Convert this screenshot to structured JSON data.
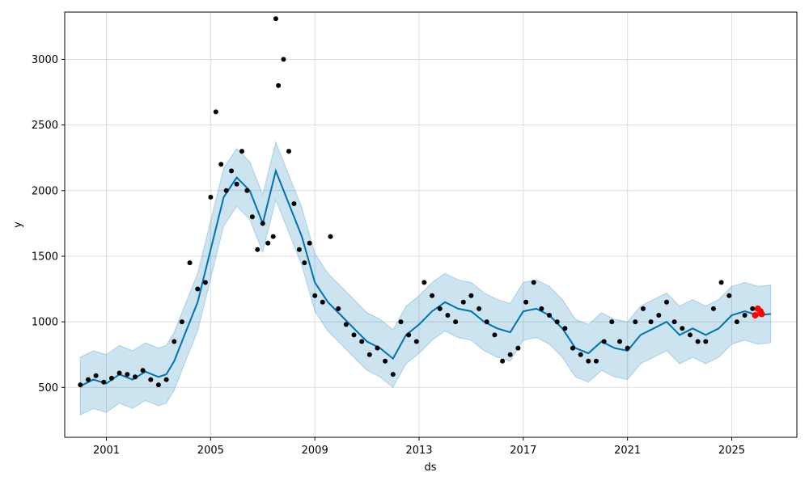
{
  "chart_data": {
    "type": "line",
    "title": "",
    "xlabel": "ds",
    "ylabel": "y",
    "xlim": [
      1999.4,
      2027.5
    ],
    "ylim": [
      120,
      3360
    ],
    "grid": true,
    "x_ticks": [
      {
        "value": 2001,
        "label": "2001"
      },
      {
        "value": 2005,
        "label": "2005"
      },
      {
        "value": 2009,
        "label": "2009"
      },
      {
        "value": 2013,
        "label": "2013"
      },
      {
        "value": 2017,
        "label": "2017"
      },
      {
        "value": 2021,
        "label": "2021"
      },
      {
        "value": 2025,
        "label": "2025"
      }
    ],
    "y_ticks": [
      {
        "value": 500,
        "label": "500"
      },
      {
        "value": 1000,
        "label": "1000"
      },
      {
        "value": 1500,
        "label": "1500"
      },
      {
        "value": 2000,
        "label": "2000"
      },
      {
        "value": 2500,
        "label": "2500"
      },
      {
        "value": 3000,
        "label": "3000"
      }
    ],
    "colors": {
      "forecast_line": "#0072B2",
      "uncertainty_band": "#0072B2",
      "actual_points": "#000000",
      "future_points": "#ff0000",
      "grid": "#dddddd"
    },
    "forecast": {
      "x": [
        2000.0,
        2000.5,
        2001.0,
        2001.5,
        2002.0,
        2002.5,
        2003.0,
        2003.3,
        2003.6,
        2004.0,
        2004.5,
        2005.0,
        2005.5,
        2006.0,
        2006.5,
        2007.0,
        2007.5,
        2008.0,
        2008.5,
        2009.0,
        2009.5,
        2010.0,
        2010.5,
        2011.0,
        2011.5,
        2012.0,
        2012.5,
        2013.0,
        2013.5,
        2014.0,
        2014.5,
        2015.0,
        2015.5,
        2016.0,
        2016.5,
        2017.0,
        2017.5,
        2018.0,
        2018.5,
        2019.0,
        2019.5,
        2020.0,
        2020.5,
        2021.0,
        2021.5,
        2022.0,
        2022.5,
        2023.0,
        2023.5,
        2024.0,
        2024.5,
        2025.0,
        2025.5,
        2026.0,
        2026.5
      ],
      "yhat": [
        510,
        560,
        530,
        600,
        560,
        620,
        580,
        600,
        700,
        900,
        1150,
        1550,
        1950,
        2100,
        2000,
        1750,
        2150,
        1900,
        1650,
        1300,
        1150,
        1050,
        950,
        850,
        800,
        720,
        900,
        980,
        1080,
        1150,
        1100,
        1080,
        1000,
        950,
        920,
        1080,
        1100,
        1050,
        950,
        800,
        760,
        850,
        800,
        780,
        900,
        950,
        1000,
        900,
        950,
        900,
        950,
        1050,
        1080,
        1050,
        1060
      ],
      "lower": [
        290,
        340,
        310,
        380,
        340,
        400,
        360,
        380,
        480,
        680,
        930,
        1330,
        1730,
        1880,
        1780,
        1530,
        1930,
        1680,
        1430,
        1080,
        930,
        830,
        730,
        630,
        580,
        500,
        680,
        760,
        860,
        930,
        880,
        860,
        780,
        730,
        700,
        860,
        880,
        830,
        730,
        580,
        540,
        630,
        580,
        560,
        680,
        730,
        780,
        680,
        730,
        680,
        730,
        830,
        860,
        830,
        840
      ],
      "upper": [
        730,
        780,
        750,
        820,
        780,
        840,
        800,
        820,
        920,
        1120,
        1370,
        1770,
        2170,
        2320,
        2220,
        1970,
        2370,
        2120,
        1870,
        1520,
        1370,
        1270,
        1170,
        1070,
        1020,
        940,
        1120,
        1200,
        1300,
        1370,
        1320,
        1300,
        1220,
        1170,
        1140,
        1300,
        1320,
        1270,
        1170,
        1020,
        980,
        1070,
        1020,
        1000,
        1120,
        1170,
        1220,
        1120,
        1170,
        1120,
        1170,
        1270,
        1300,
        1270,
        1280
      ]
    },
    "actual": {
      "x": [
        2000.0,
        2000.3,
        2000.6,
        2000.9,
        2001.2,
        2001.5,
        2001.8,
        2002.1,
        2002.4,
        2002.7,
        2003.0,
        2003.3,
        2003.6,
        2003.9,
        2004.2,
        2004.5,
        2004.8,
        2005.0,
        2005.2,
        2005.4,
        2005.6,
        2005.8,
        2006.0,
        2006.2,
        2006.4,
        2006.6,
        2006.8,
        2007.0,
        2007.2,
        2007.4,
        2007.6,
        2007.8,
        2008.0,
        2008.2,
        2008.4,
        2008.6,
        2008.8,
        2009.0,
        2009.3,
        2009.6,
        2009.9,
        2010.2,
        2010.5,
        2010.8,
        2011.1,
        2011.4,
        2011.7,
        2012.0,
        2012.3,
        2012.6,
        2012.9,
        2013.2,
        2013.5,
        2013.8,
        2014.1,
        2014.4,
        2014.7,
        2015.0,
        2015.3,
        2015.6,
        2015.9,
        2016.2,
        2016.5,
        2016.8,
        2017.1,
        2017.4,
        2017.7,
        2018.0,
        2018.3,
        2018.6,
        2018.9,
        2019.2,
        2019.5,
        2019.8,
        2020.1,
        2020.4,
        2020.7,
        2021.0,
        2021.3,
        2021.6,
        2021.9,
        2022.2,
        2022.5,
        2022.8,
        2023.1,
        2023.4,
        2023.7,
        2024.0,
        2024.3,
        2024.6,
        2024.9,
        2025.2,
        2025.5,
        2025.8
      ],
      "y": [
        520,
        560,
        590,
        540,
        570,
        610,
        600,
        580,
        630,
        560,
        520,
        560,
        850,
        1000,
        1450,
        1250,
        1300,
        1950,
        2600,
        2200,
        2000,
        2150,
        2050,
        2300,
        2000,
        1800,
        1550,
        1750,
        1600,
        1650,
        2800,
        3000,
        2300,
        1900,
        1550,
        1450,
        1600,
        1200,
        1150,
        1650,
        1100,
        980,
        900,
        850,
        750,
        800,
        700,
        600,
        1000,
        900,
        850,
        1300,
        1200,
        1100,
        1050,
        1000,
        1150,
        1200,
        1100,
        1000,
        900,
        700,
        750,
        800,
        1150,
        1300,
        1100,
        1050,
        1000,
        950,
        800,
        750,
        700,
        700,
        850,
        1000,
        850,
        800,
        1000,
        1100,
        1000,
        1050,
        1150,
        1000,
        950,
        900,
        850,
        850,
        1100,
        1300,
        1200,
        1000,
        1050,
        1100
      ],
      "outlier": {
        "x": 2007.5,
        "y": 3310
      }
    },
    "future": {
      "x": [
        2025.9,
        2026.0,
        2026.1,
        2026.15
      ],
      "y": [
        1050,
        1100,
        1080,
        1060
      ]
    }
  }
}
